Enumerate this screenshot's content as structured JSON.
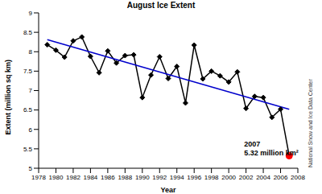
{
  "chart_data": {
    "type": "line",
    "title": "August Ice Extent",
    "x_label": "Year",
    "y_label": "Extent (million sq km)",
    "source": "National Snow and Ice Data Center",
    "x": [
      1979,
      1980,
      1981,
      1982,
      1983,
      1984,
      1985,
      1986,
      1987,
      1988,
      1989,
      1990,
      1991,
      1992,
      1993,
      1994,
      1995,
      1996,
      1997,
      1998,
      1999,
      2000,
      2001,
      2002,
      2003,
      2004,
      2005,
      2006,
      2007
    ],
    "values": [
      8.18,
      8.04,
      7.86,
      8.28,
      8.38,
      7.88,
      7.46,
      8.02,
      7.71,
      7.9,
      7.92,
      6.82,
      7.4,
      7.87,
      7.31,
      7.62,
      6.68,
      8.17,
      7.3,
      7.5,
      7.38,
      7.22,
      7.48,
      6.54,
      6.85,
      6.82,
      6.31,
      6.52,
      5.32
    ],
    "color": "#000000",
    "marker": "diamond",
    "trend": {
      "x": [
        1979,
        2007
      ],
      "values": [
        8.31,
        6.52
      ],
      "color": "#0000cc"
    },
    "annotation": {
      "text": [
        "2007",
        "5.32 million km²"
      ],
      "x": 2007,
      "y": 5.32,
      "color": "#ff0000"
    },
    "xlim": [
      1978,
      2008
    ],
    "xticks": [
      1978,
      1980,
      1982,
      1984,
      1986,
      1988,
      1990,
      1992,
      1994,
      1996,
      1998,
      2000,
      2002,
      2004,
      2006,
      2008
    ],
    "ylim": [
      5,
      9
    ],
    "yticks": [
      5,
      5.5,
      6,
      6.5,
      7,
      7.5,
      8,
      8.5,
      9
    ],
    "grid": false
  }
}
